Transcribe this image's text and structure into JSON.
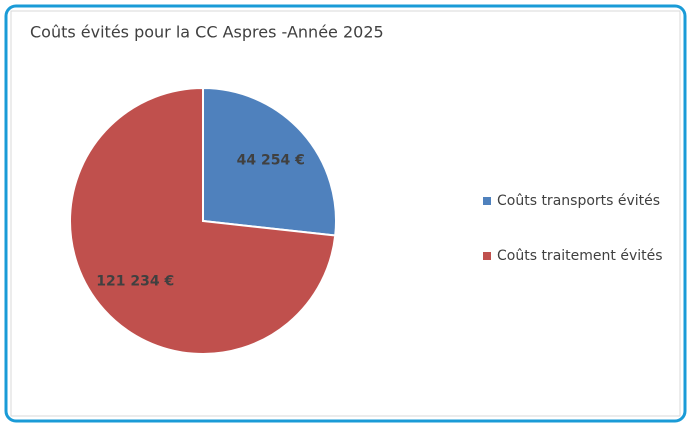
{
  "chart_data": {
    "type": "pie",
    "title": "Coûts évités pour la CC Aspres -Année 2025",
    "categories": [
      "Coûts transports évités",
      "Coûts traitement évités"
    ],
    "values": [
      44254,
      121234
    ],
    "value_labels": [
      "44 254 €",
      "121 234 €"
    ],
    "colors": [
      "#4f81bd",
      "#c0504d"
    ],
    "legend": "right"
  }
}
